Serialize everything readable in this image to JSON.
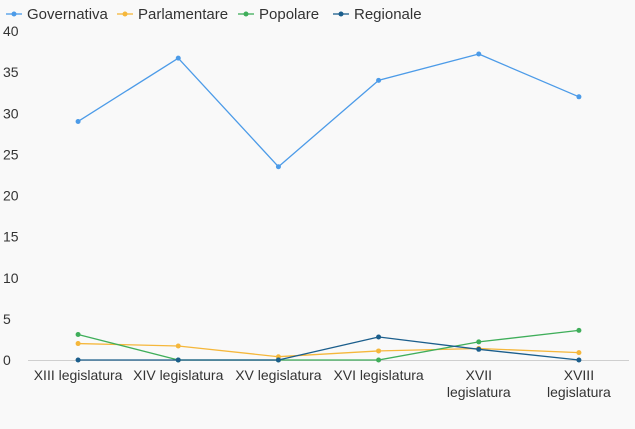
{
  "chart_data": {
    "type": "line",
    "categories": [
      [
        "XIII legislatura"
      ],
      [
        "XIV legislatura"
      ],
      [
        "XV legislatura"
      ],
      [
        "XVI legislatura"
      ],
      [
        "XVII",
        "legislatura"
      ],
      [
        "XVIII",
        "legislatura"
      ]
    ],
    "series": [
      {
        "name": "Governativa",
        "color": "#4c9be8",
        "values": [
          29.0,
          36.7,
          23.5,
          34.0,
          37.2,
          32.0
        ]
      },
      {
        "name": "Parlamentare",
        "color": "#f5b73b",
        "values": [
          2.0,
          1.7,
          0.4,
          1.1,
          1.4,
          0.9
        ]
      },
      {
        "name": "Popolare",
        "color": "#3fae5a",
        "values": [
          3.1,
          0.0,
          0.0,
          0.0,
          2.2,
          3.6
        ]
      },
      {
        "name": "Regionale",
        "color": "#1b5e8c",
        "values": [
          0.0,
          0.0,
          0.0,
          2.8,
          1.3,
          0.0
        ]
      }
    ],
    "y_ticks": [
      "0",
      "5",
      "10",
      "15",
      "20",
      "25",
      "30",
      "35",
      "40"
    ],
    "ylim": [
      0,
      40
    ],
    "grid": false,
    "legend_position": "top-left"
  }
}
